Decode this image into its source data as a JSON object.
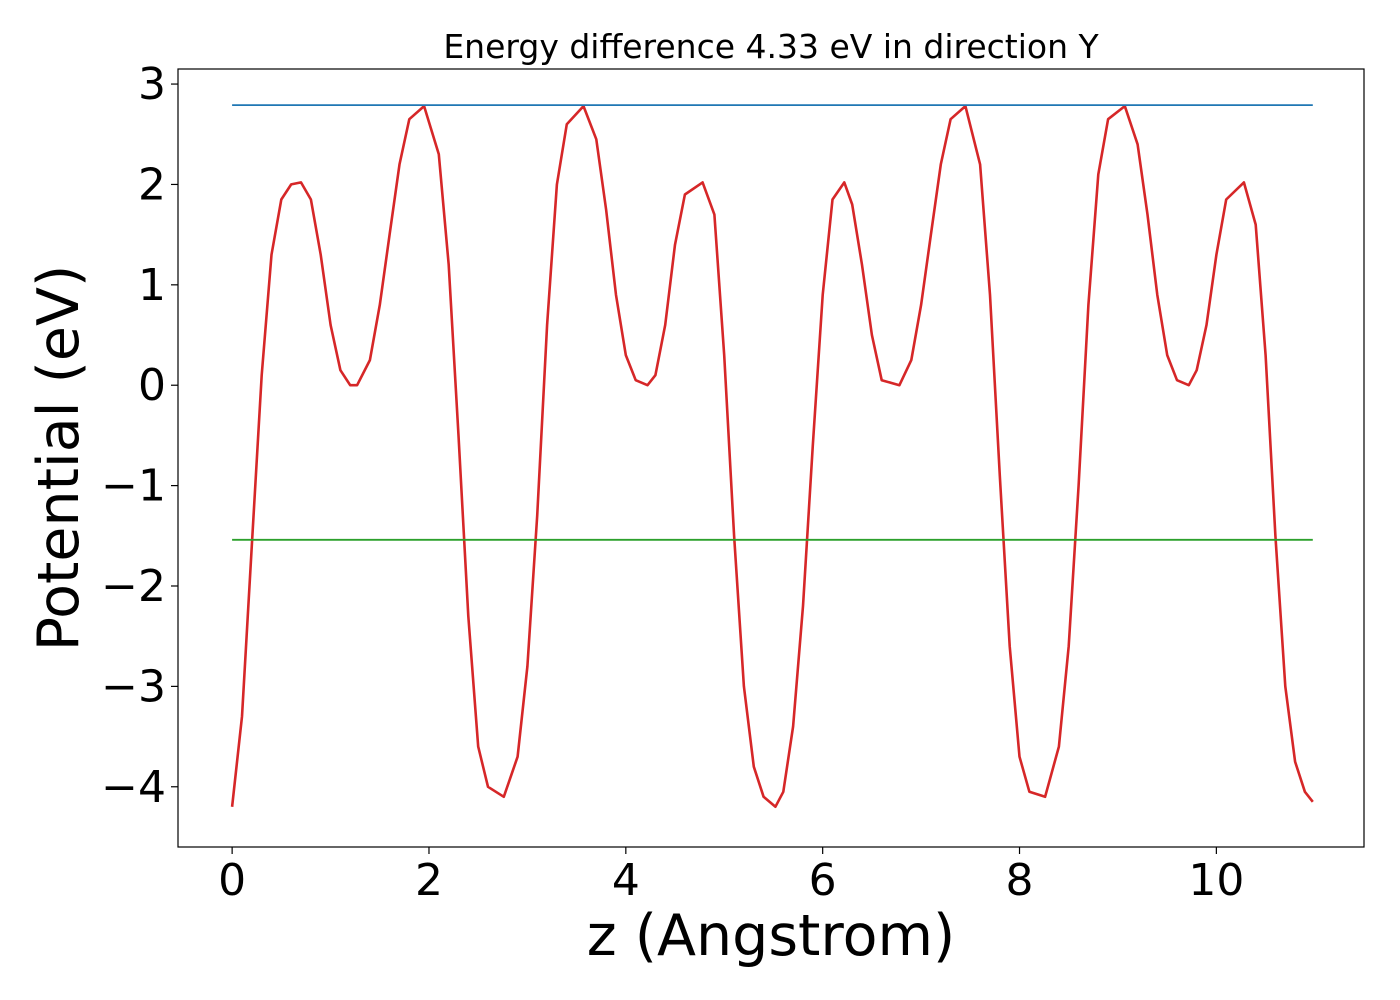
{
  "chart_data": {
    "type": "line",
    "title": "Energy difference 4.33 eV in direction Y",
    "xlabel": "z (Angstrom)",
    "ylabel": "Potential (eV)",
    "xlim": [
      -0.55,
      11.5
    ],
    "ylim": [
      -4.6,
      3.15
    ],
    "xticks": [
      0,
      2,
      4,
      6,
      8,
      10
    ],
    "yticks": [
      3,
      2,
      1,
      0,
      -1,
      -2,
      -3,
      -4
    ],
    "xtick_labels": [
      "0",
      "2",
      "4",
      "6",
      "8",
      "10"
    ],
    "ytick_labels": [
      "3",
      "2",
      "1",
      "0",
      "−1",
      "−2",
      "−3",
      "−4"
    ],
    "grid": false,
    "series": [
      {
        "color": "#d62728",
        "x": [
          0.0,
          0.1,
          0.2,
          0.3,
          0.4,
          0.5,
          0.6,
          0.7,
          0.8,
          0.9,
          1.0,
          1.1,
          1.2,
          1.27,
          1.4,
          1.5,
          1.6,
          1.7,
          1.8,
          1.95,
          2.1,
          2.2,
          2.3,
          2.4,
          2.5,
          2.6,
          2.76,
          2.9,
          3.0,
          3.1,
          3.2,
          3.3,
          3.4,
          3.57,
          3.7,
          3.8,
          3.9,
          4.0,
          4.1,
          4.22,
          4.3,
          4.4,
          4.5,
          4.6,
          4.78,
          4.9,
          5.0,
          5.1,
          5.2,
          5.3,
          5.4,
          5.52,
          5.6,
          5.7,
          5.8,
          5.9,
          6.0,
          6.1,
          6.22,
          6.3,
          6.4,
          6.5,
          6.6,
          6.78,
          6.9,
          7.0,
          7.1,
          7.2,
          7.3,
          7.45,
          7.6,
          7.7,
          7.8,
          7.9,
          8.0,
          8.1,
          8.26,
          8.4,
          8.5,
          8.6,
          8.7,
          8.8,
          8.9,
          9.07,
          9.2,
          9.3,
          9.4,
          9.5,
          9.6,
          9.72,
          9.8,
          9.9,
          10.0,
          10.1,
          10.28,
          10.4,
          10.5,
          10.6,
          10.7,
          10.8,
          10.9,
          10.98
        ],
        "y": [
          -4.2,
          -3.3,
          -1.6,
          0.1,
          1.3,
          1.85,
          2.0,
          2.02,
          1.85,
          1.3,
          0.6,
          0.15,
          0.0,
          0.0,
          0.25,
          0.8,
          1.5,
          2.2,
          2.65,
          2.78,
          2.3,
          1.2,
          -0.5,
          -2.3,
          -3.6,
          -4.0,
          -4.1,
          -3.7,
          -2.8,
          -1.3,
          0.6,
          2.0,
          2.6,
          2.78,
          2.45,
          1.75,
          0.9,
          0.3,
          0.05,
          0.0,
          0.1,
          0.6,
          1.4,
          1.9,
          2.02,
          1.7,
          0.3,
          -1.5,
          -3.0,
          -3.8,
          -4.1,
          -4.2,
          -4.05,
          -3.4,
          -2.2,
          -0.6,
          0.9,
          1.85,
          2.02,
          1.8,
          1.2,
          0.5,
          0.05,
          0.0,
          0.25,
          0.8,
          1.5,
          2.2,
          2.65,
          2.78,
          2.2,
          0.9,
          -0.9,
          -2.6,
          -3.7,
          -4.05,
          -4.1,
          -3.6,
          -2.6,
          -1.0,
          0.8,
          2.1,
          2.65,
          2.78,
          2.4,
          1.7,
          0.9,
          0.3,
          0.05,
          0.0,
          0.15,
          0.6,
          1.3,
          1.85,
          2.02,
          1.6,
          0.3,
          -1.5,
          -3.0,
          -3.75,
          -4.05,
          -4.15
        ]
      },
      {
        "color": "#1f77b4",
        "x": [
          0.0,
          10.98
        ],
        "y": [
          2.79,
          2.79
        ]
      },
      {
        "color": "#2ca02c",
        "x": [
          0.0,
          10.98
        ],
        "y": [
          -1.54,
          -1.54
        ]
      }
    ]
  }
}
